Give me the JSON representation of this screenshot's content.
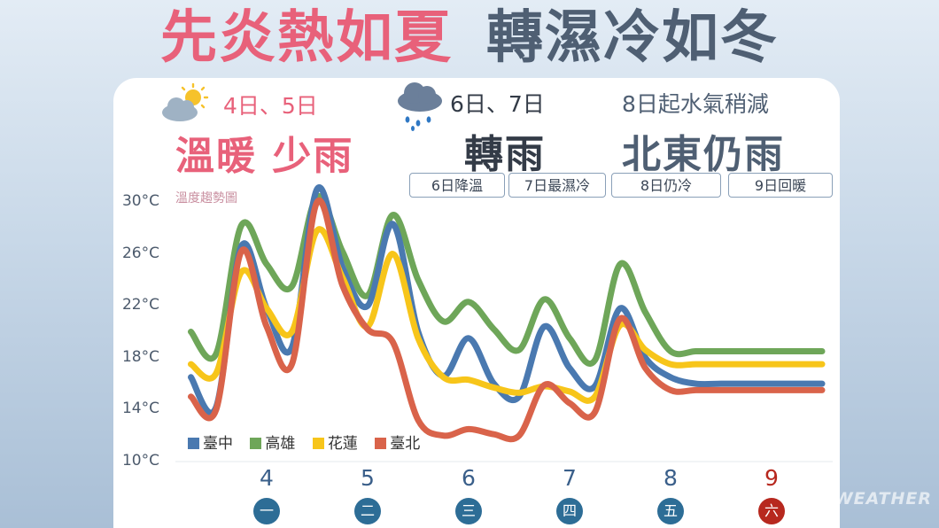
{
  "headline": {
    "left": "先炎熱如夏",
    "right": "轉濕冷如冬"
  },
  "phases": [
    {
      "dates": "4日、5日",
      "title": "溫暖 少雨",
      "icon": "sun-cloud-icon",
      "color": "#e8617a"
    },
    {
      "dates": "6日、7日",
      "title": "轉雨",
      "icon": "rain-cloud-icon",
      "color": "#333b47"
    },
    {
      "dates": "8日起水氣稍減",
      "title": "北東仍雨",
      "icon": "",
      "color": "#4f5f73"
    }
  ],
  "tags": [
    "6日降溫",
    "7日最濕冷",
    "8日仍冷",
    "9日回暖"
  ],
  "trend_label": "溫度趨勢圖",
  "watermark": "WEATHER",
  "colors": {
    "taichung": "#4a79b0",
    "kaohsiung": "#6ea659",
    "hualien": "#f7c51a",
    "taipei": "#d9634a",
    "weekend": "#b7281e",
    "weekday": "#2d6d96"
  },
  "chart_data": {
    "type": "line",
    "ylim": [
      10,
      30
    ],
    "yticks": [
      10,
      14,
      18,
      22,
      26,
      30
    ],
    "ytick_labels": [
      "10°C",
      "14°C",
      "18°C",
      "22°C",
      "26°C",
      "30°C"
    ],
    "days": [
      {
        "num": "4",
        "weekday": "一",
        "weekend": false
      },
      {
        "num": "5",
        "weekday": "二",
        "weekend": false
      },
      {
        "num": "6",
        "weekday": "三",
        "weekend": false
      },
      {
        "num": "7",
        "weekday": "四",
        "weekend": false
      },
      {
        "num": "8",
        "weekday": "五",
        "weekend": false
      },
      {
        "num": "9",
        "weekday": "六",
        "weekend": true
      }
    ],
    "x": [
      3.0,
      3.25,
      3.5,
      3.75,
      4.0,
      4.25,
      4.5,
      4.75,
      5.0,
      5.25,
      5.5,
      5.75,
      6.0,
      6.25,
      6.5,
      6.75,
      7.0,
      7.25,
      7.5,
      7.75,
      8.0,
      8.25,
      8.5,
      8.75,
      9.0,
      9.25,
      9.5,
      9.75
    ],
    "series": [
      {
        "name": "臺中",
        "key": "taichung",
        "values": [
          18.2,
          16.5,
          14.2,
          26.6,
          21.8,
          18.8,
          31.0,
          25.0,
          22.0,
          28.3,
          20.0,
          16.6,
          19.5,
          16.0,
          15.0,
          20.4,
          17.2,
          15.8,
          21.8,
          18.0,
          16.5,
          16.0,
          16.0,
          16.0,
          16.0,
          16.0,
          16.0,
          16.0
        ]
      },
      {
        "name": "高雄",
        "key": "kaohsiung",
        "values": [
          22.4,
          20.0,
          18.3,
          28.2,
          25.2,
          23.5,
          30.4,
          26.2,
          22.8,
          29.0,
          24.0,
          20.8,
          22.3,
          20.2,
          18.6,
          22.5,
          19.5,
          17.8,
          25.2,
          21.5,
          18.5,
          18.5,
          18.5,
          18.5,
          18.5,
          18.5,
          18.5,
          18.5
        ]
      },
      {
        "name": "花蓮",
        "key": "hualien",
        "values": [
          18.9,
          17.5,
          16.8,
          24.6,
          21.8,
          20.0,
          27.8,
          24.2,
          20.4,
          26.0,
          19.5,
          16.5,
          16.3,
          15.7,
          15.3,
          15.8,
          15.4,
          15.0,
          20.5,
          18.6,
          17.5,
          17.5,
          17.5,
          17.5,
          17.5,
          17.5,
          17.5,
          17.5
        ]
      },
      {
        "name": "臺北",
        "key": "taipei",
        "values": [
          16.2,
          15.0,
          14.0,
          26.2,
          20.4,
          17.5,
          30.0,
          23.6,
          20.2,
          19.2,
          13.2,
          12.0,
          12.5,
          12.1,
          12.0,
          15.9,
          14.5,
          13.8,
          21.0,
          17.2,
          15.5,
          15.5,
          15.5,
          15.5,
          15.5,
          15.5,
          15.5,
          15.5
        ]
      }
    ]
  }
}
